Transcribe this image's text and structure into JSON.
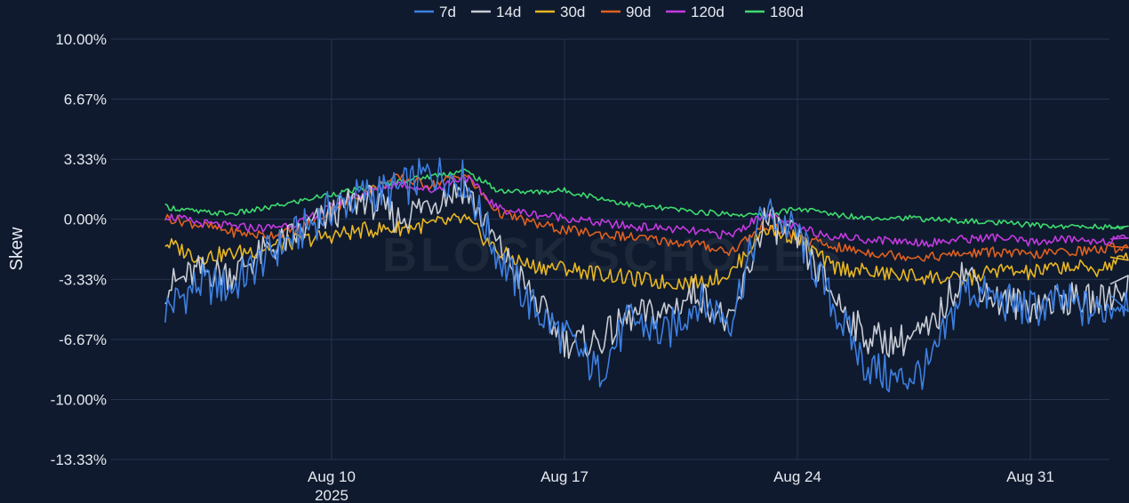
{
  "chart_data": {
    "type": "line",
    "title": "",
    "xlabel": "",
    "ylabel": "Skew",
    "x_range": [
      "2025-08-05",
      "2025-09-03"
    ],
    "ylim": [
      -13.33,
      10.0
    ],
    "y_ticks": [
      "10.00%",
      "6.67%",
      "3.33%",
      "0.00%",
      "-3.33%",
      "-6.67%",
      "-10.00%",
      "-13.33%"
    ],
    "y_tick_values": [
      10.0,
      6.67,
      3.33,
      0.0,
      -3.33,
      -6.67,
      -10.0,
      -13.33
    ],
    "x_ticks": [
      {
        "date": "2025-08-10",
        "label": "Aug 10",
        "sublabel": "2025"
      },
      {
        "date": "2025-08-17",
        "label": "Aug 17",
        "sublabel": ""
      },
      {
        "date": "2025-08-24",
        "label": "Aug 24",
        "sublabel": ""
      },
      {
        "date": "2025-08-31",
        "label": "Aug 31",
        "sublabel": ""
      }
    ],
    "grid": true,
    "legend_position": "top-center",
    "watermark": "BLOCK SCHOLES",
    "x": [
      "2025-08-05",
      "2025-08-06",
      "2025-08-07",
      "2025-08-08",
      "2025-08-09",
      "2025-08-10",
      "2025-08-11",
      "2025-08-12",
      "2025-08-13",
      "2025-08-14",
      "2025-08-15",
      "2025-08-16",
      "2025-08-17",
      "2025-08-18",
      "2025-08-19",
      "2025-08-20",
      "2025-08-21",
      "2025-08-22",
      "2025-08-23",
      "2025-08-24",
      "2025-08-25",
      "2025-08-26",
      "2025-08-27",
      "2025-08-28",
      "2025-08-29",
      "2025-08-30",
      "2025-08-31",
      "2025-09-01",
      "2025-09-02",
      "2025-09-03"
    ],
    "series": [
      {
        "name": "7d",
        "color": "#3d7fe0",
        "values": [
          -5.0,
          -3.6,
          -3.8,
          -2.1,
          -0.8,
          0.6,
          1.4,
          1.6,
          2.6,
          2.2,
          -2.0,
          -4.8,
          -6.5,
          -8.5,
          -5.5,
          -6.5,
          -4.5,
          -5.5,
          0.5,
          -0.8,
          -4.5,
          -8.0,
          -9.0,
          -8.2,
          -3.8,
          -4.5,
          -5.0,
          -4.6,
          -5.2,
          -4.2
        ]
      },
      {
        "name": "14d",
        "color": "#c8ccd4",
        "values": [
          -3.8,
          -2.9,
          -3.0,
          -1.8,
          -0.8,
          0.3,
          1.2,
          0.0,
          1.0,
          1.8,
          -1.5,
          -4.2,
          -6.8,
          -6.8,
          -5.4,
          -5.2,
          -4.0,
          -6.0,
          0.0,
          -1.2,
          -4.0,
          -6.5,
          -6.8,
          -6.2,
          -2.8,
          -4.5,
          -4.8,
          -4.4,
          -4.6,
          -3.6
        ]
      },
      {
        "name": "30d",
        "color": "#e8b622",
        "values": [
          -1.3,
          -2.1,
          -1.9,
          -1.6,
          -1.2,
          -0.9,
          -0.6,
          -0.5,
          -0.3,
          0.0,
          -1.8,
          -2.6,
          -2.7,
          -3.0,
          -3.3,
          -3.5,
          -3.5,
          -3.0,
          -0.5,
          -1.0,
          -2.6,
          -2.9,
          -3.1,
          -3.2,
          -3.4,
          -2.8,
          -3.0,
          -2.6,
          -2.8,
          -2.1
        ]
      },
      {
        "name": "90d",
        "color": "#e0601f",
        "values": [
          0.1,
          -0.3,
          -0.7,
          -0.9,
          -0.6,
          0.5,
          1.5,
          2.3,
          1.9,
          2.5,
          0.4,
          -0.2,
          -0.6,
          -0.8,
          -1.0,
          -1.2,
          -1.4,
          -1.8,
          -0.3,
          -1.0,
          -1.5,
          -1.8,
          -2.0,
          -2.1,
          -1.9,
          -1.8,
          -2.0,
          -1.8,
          -1.7,
          -1.5
        ]
      },
      {
        "name": "120d",
        "color": "#c43ae0",
        "values": [
          0.2,
          -0.2,
          -0.4,
          -0.5,
          -0.2,
          0.7,
          1.5,
          2.0,
          1.6,
          2.4,
          0.6,
          0.3,
          0.1,
          -0.2,
          -0.4,
          -0.5,
          -0.7,
          -0.9,
          0.3,
          -0.5,
          -0.9,
          -1.1,
          -1.2,
          -1.3,
          -1.1,
          -1.0,
          -1.3,
          -1.1,
          -1.2,
          -1.1
        ]
      },
      {
        "name": "180d",
        "color": "#3edb6e",
        "values": [
          0.7,
          0.4,
          0.3,
          0.6,
          1.0,
          1.4,
          1.7,
          2.1,
          2.4,
          2.7,
          1.6,
          1.5,
          1.6,
          1.2,
          0.8,
          0.6,
          0.4,
          0.3,
          0.2,
          0.6,
          0.3,
          0.1,
          0.1,
          0.0,
          -0.1,
          -0.2,
          -0.3,
          -0.4,
          -0.4,
          -0.5
        ]
      }
    ]
  }
}
